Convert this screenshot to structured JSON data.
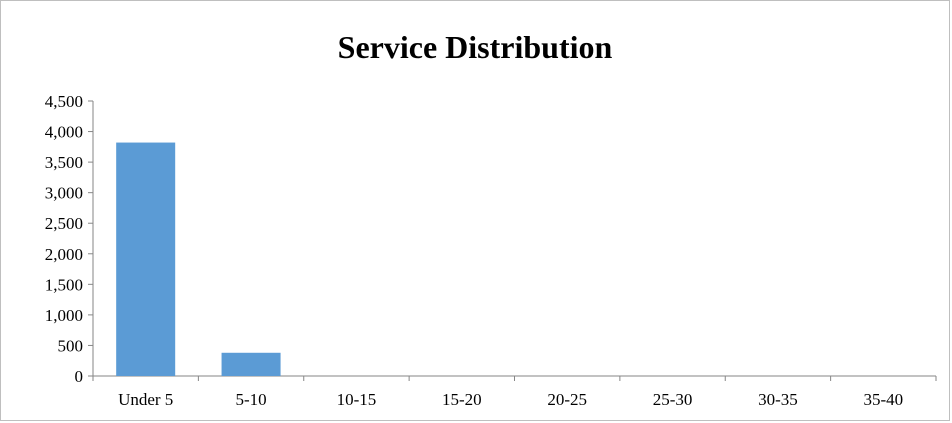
{
  "chart_data": {
    "type": "bar",
    "title": "Service Distribution",
    "xlabel": "",
    "ylabel": "",
    "categories": [
      "Under 5",
      "5-10",
      "10-15",
      "15-20",
      "20-25",
      "25-30",
      "30-35",
      "35-40"
    ],
    "values": [
      3820,
      380,
      0,
      0,
      0,
      0,
      0,
      0
    ],
    "ylim": [
      0,
      4500
    ],
    "yticks": [
      0,
      500,
      1000,
      1500,
      2000,
      2500,
      3000,
      3500,
      4000,
      4500
    ],
    "ytick_labels": [
      "0",
      "500",
      "1,000",
      "1,500",
      "2,000",
      "2,500",
      "3,000",
      "3,500",
      "4,000",
      "4,500"
    ],
    "grid": false,
    "legend": "none",
    "bar_color": "#5b9bd5"
  }
}
